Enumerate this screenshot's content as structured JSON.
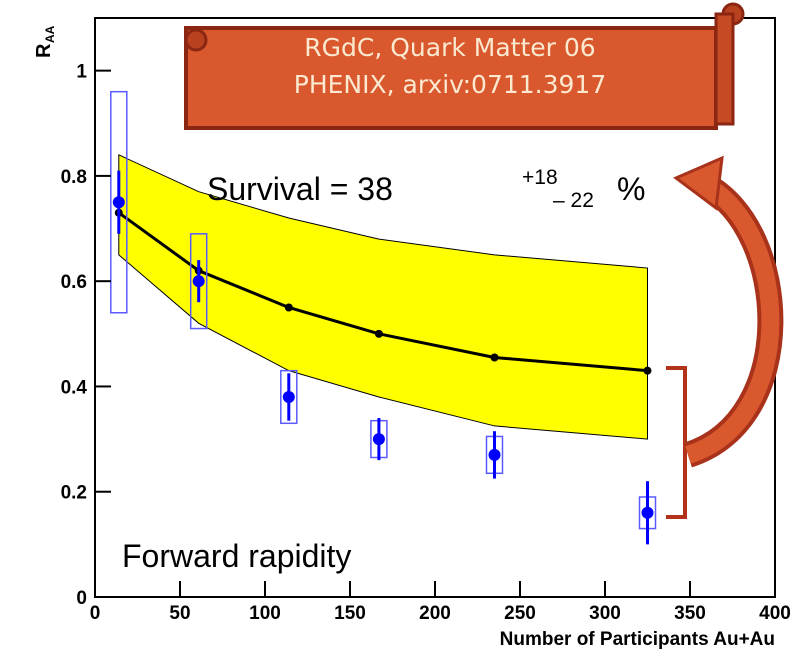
{
  "chart_data": {
    "type": "errorbar",
    "y_label": {
      "main": "R",
      "sub": "AA"
    },
    "x_label": "Number of Participants Au+Au",
    "xlim": [
      0,
      400
    ],
    "xticks": [
      0,
      50,
      100,
      150,
      200,
      250,
      300,
      350,
      400
    ],
    "ylim": [
      0,
      1.1
    ],
    "yticks": [
      0,
      0.2,
      0.4,
      0.6,
      0.8,
      1
    ],
    "points": {
      "x": [
        14,
        61,
        114,
        167,
        235,
        325
      ],
      "values": [
        0.75,
        0.6,
        0.38,
        0.3,
        0.27,
        0.16
      ],
      "errors": [
        0.06,
        0.04,
        0.045,
        0.04,
        0.045,
        0.06
      ],
      "syst": [
        0.21,
        0.09,
        0.05,
        0.035,
        0.035,
        0.03
      ],
      "color": "#0000ff",
      "box_color": "#5a5aff"
    },
    "curve": {
      "x": [
        14,
        61,
        114,
        167,
        235,
        325
      ],
      "values": [
        0.73,
        0.62,
        0.55,
        0.5,
        0.455,
        0.43
      ],
      "upper": [
        0.84,
        0.77,
        0.72,
        0.68,
        0.65,
        0.625
      ],
      "lower": [
        0.65,
        0.52,
        0.43,
        0.38,
        0.325,
        0.3
      ],
      "color": "#000000",
      "band_color": "#ffff00"
    },
    "annotations": {
      "banner": [
        "RGdC, Quark Matter 06",
        "PHENIX, arxiv:0711.3917"
      ],
      "survival": {
        "main": "Survival = 38",
        "plus": "+18",
        "minus": "– 22",
        "unit": "%"
      },
      "region": "Forward rapidity"
    }
  }
}
